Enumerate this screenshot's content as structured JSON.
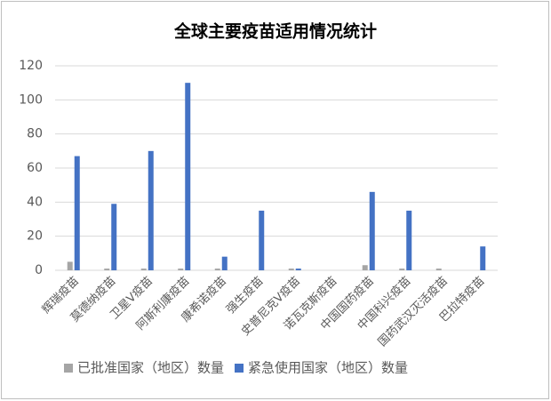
{
  "chart_data": {
    "type": "bar",
    "title": "全球主要疫苗适用情况统计",
    "categories": [
      "辉瑞疫苗",
      "莫德纳疫苗",
      "卫星V疫苗",
      "阿斯利康疫苗",
      "康希诺疫苗",
      "强生疫苗",
      "史普尼克V疫苗",
      "诺瓦克斯疫苗",
      "中国国药疫苗",
      "中国科兴疫苗",
      "国药武汉灭活疫苗",
      "巴拉特疫苗"
    ],
    "series": [
      {
        "name": "已批准国家（地区）数量",
        "color": "#a5a5a5",
        "values": [
          5,
          1,
          1,
          1,
          1,
          0,
          1,
          0,
          3,
          1,
          1,
          0
        ]
      },
      {
        "name": "紧急使用国家（地区）数量",
        "color": "#4472c4",
        "values": [
          67,
          39,
          70,
          110,
          8,
          35,
          1,
          0,
          46,
          35,
          0,
          14
        ]
      }
    ],
    "ylim": [
      0,
      120
    ],
    "yticks": [
      0,
      20,
      40,
      60,
      80,
      100,
      120
    ],
    "grid": true,
    "legend": "bottom"
  }
}
